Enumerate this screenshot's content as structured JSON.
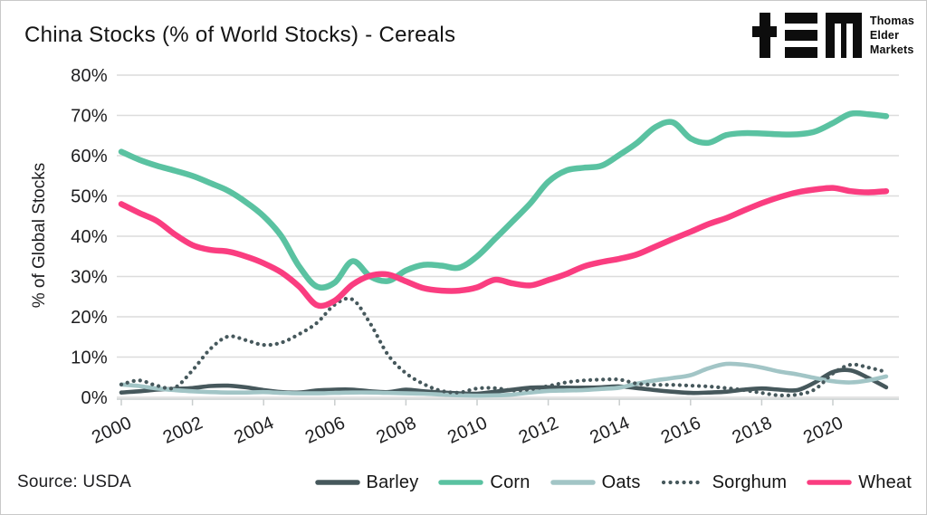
{
  "header": {
    "logo": {
      "brand_lines": [
        "Thomas",
        "Elder",
        "Markets"
      ],
      "glyphs": [
        "plus-glyph",
        "e-bars-glyph",
        "m-glyph"
      ],
      "color": "#0d0d0d"
    }
  },
  "source_label": "Source: USDA",
  "colors": {
    "barley": "#46585c",
    "corn": "#5ac2a1",
    "oats": "#a2c5c6",
    "sorghum": "#46585c",
    "wheat": "#fa3d80",
    "grid": "#dcdcdc",
    "axis": "#c9cdce",
    "text": "#1d1d1f"
  },
  "chart_data": {
    "type": "line",
    "title": "China Stocks (% of World Stocks) - Cereals",
    "xlabel": "",
    "ylabel": "% of Global Stocks",
    "ylim": [
      0,
      80
    ],
    "ytick_step": 10,
    "ytick_suffix": "%",
    "xlim": [
      2000,
      2021.5
    ],
    "xticks": [
      2000,
      2002,
      2004,
      2006,
      2008,
      2010,
      2012,
      2014,
      2016,
      2018,
      2020
    ],
    "grid": "horizontal",
    "legend_position": "bottom",
    "x": [
      2000,
      2000.5,
      2001,
      2001.5,
      2002,
      2002.5,
      2003,
      2003.5,
      2004,
      2004.5,
      2005,
      2005.5,
      2006,
      2006.5,
      2007,
      2007.5,
      2008,
      2008.5,
      2009,
      2009.5,
      2010,
      2010.5,
      2011,
      2011.5,
      2012,
      2012.5,
      2013,
      2013.5,
      2014,
      2014.5,
      2015,
      2015.5,
      2016,
      2016.5,
      2017,
      2017.5,
      2018,
      2018.5,
      2019,
      2019.5,
      2020,
      2020.5,
      2021,
      2021.5
    ],
    "series": [
      {
        "name": "Barley",
        "color_key": "barley",
        "style": "solid",
        "width": 4.6,
        "values": [
          1.2,
          1.5,
          1.9,
          2.1,
          2.3,
          2.8,
          2.9,
          2.5,
          1.8,
          1.3,
          1.2,
          1.7,
          1.9,
          1.9,
          1.5,
          1.3,
          1.9,
          1.5,
          1.2,
          1,
          0.9,
          1.4,
          1.9,
          2.4,
          2.5,
          2.4,
          2.4,
          2.5,
          2.7,
          2.3,
          1.8,
          1.4,
          1.1,
          1.2,
          1.4,
          1.9,
          2.2,
          1.9,
          1.8,
          3.7,
          6.3,
          6.7,
          4.8,
          2.5
        ]
      },
      {
        "name": "Corn",
        "color_key": "corn",
        "style": "solid",
        "width": 6.5,
        "values": [
          61,
          59,
          57.5,
          56.3,
          55,
          53.2,
          51.3,
          48.5,
          45,
          40,
          32.5,
          27.5,
          28.5,
          33.8,
          30,
          28.9,
          31.5,
          32.9,
          32.7,
          32.2,
          35,
          39.3,
          43.7,
          48.2,
          53.5,
          56.3,
          57,
          57.5,
          60.2,
          63.2,
          67,
          68.3,
          64.3,
          63.2,
          65.1,
          65.6,
          65.5,
          65.3,
          65.3,
          66,
          68.1,
          70.4,
          70.3,
          69.8
        ]
      },
      {
        "name": "Oats",
        "color_key": "oats",
        "style": "solid",
        "width": 4.6,
        "values": [
          3.2,
          2.8,
          2.2,
          1.8,
          1.5,
          1.3,
          1.2,
          1.2,
          1.3,
          1.1,
          1,
          1,
          1.1,
          1.2,
          1.2,
          1.1,
          1,
          0.9,
          0.7,
          0.5,
          0.4,
          0.5,
          0.7,
          1.2,
          1.6,
          1.7,
          1.8,
          2.1,
          2.4,
          3.4,
          4.2,
          4.8,
          5.5,
          7.2,
          8.3,
          8.1,
          7.4,
          6.4,
          5.7,
          4.8,
          4,
          3.7,
          4.2,
          5.2
        ]
      },
      {
        "name": "Sorghum",
        "color_key": "sorghum",
        "style": "dotted",
        "width": 4.2,
        "values": [
          3.2,
          4.2,
          2.9,
          2.4,
          6.7,
          12,
          15.1,
          14.2,
          13,
          13.6,
          15.7,
          18.5,
          23,
          24.3,
          18.3,
          10.5,
          6,
          3.3,
          1.6,
          1.2,
          2.2,
          2.3,
          1.7,
          2,
          2.8,
          3.7,
          4.2,
          4.4,
          4.4,
          3.4,
          3.1,
          3.1,
          2.9,
          2.7,
          2.3,
          1.8,
          1.1,
          0.5,
          0.7,
          2,
          5.9,
          8.1,
          7.4,
          6.3
        ]
      },
      {
        "name": "Wheat",
        "color_key": "wheat",
        "style": "solid",
        "width": 6.5,
        "values": [
          48,
          45.8,
          43.8,
          40.5,
          37.8,
          36.6,
          36.2,
          35,
          33.3,
          31,
          27.5,
          22.9,
          24,
          28,
          30.2,
          30.5,
          28.8,
          27.1,
          26.5,
          26.5,
          27.3,
          29.2,
          28.3,
          27.8,
          29.1,
          30.6,
          32.5,
          33.6,
          34.4,
          35.5,
          37.4,
          39.3,
          41.1,
          43,
          44.5,
          46.4,
          48.2,
          49.7,
          50.9,
          51.6,
          52,
          51.2,
          50.9,
          51.2
        ]
      }
    ]
  }
}
